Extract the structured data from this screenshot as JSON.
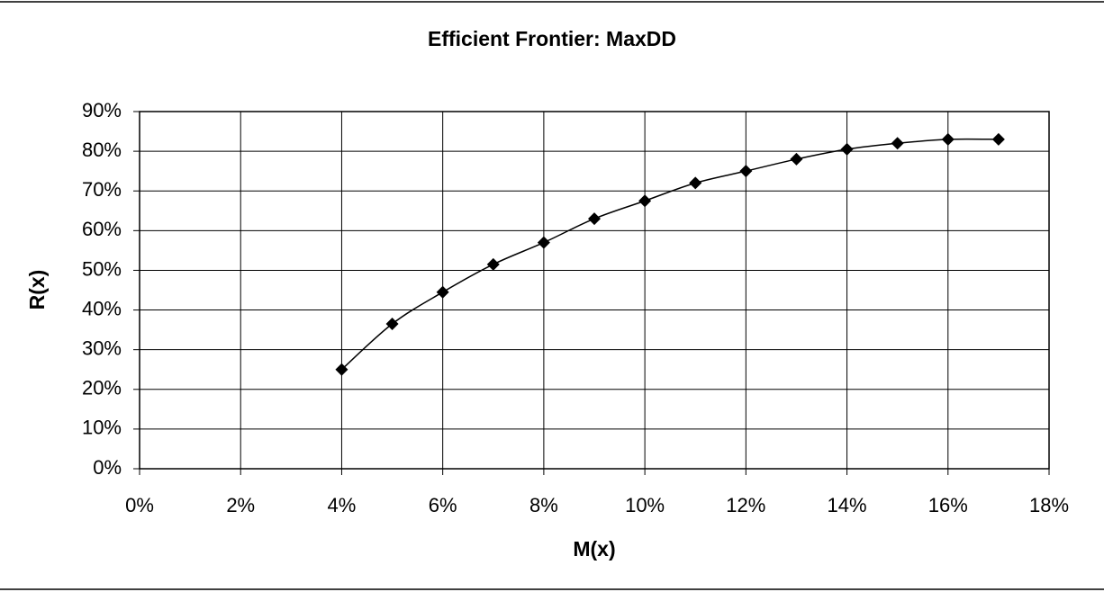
{
  "chart_data": {
    "type": "line",
    "title": "Efficient Frontier: MaxDD",
    "x_label": "M(x)",
    "y_label": "R(x)",
    "x": [
      4,
      5,
      6,
      7,
      8,
      9,
      10,
      11,
      12,
      13,
      14,
      15,
      16,
      17
    ],
    "values": [
      25,
      36.5,
      44.5,
      51.5,
      57,
      63,
      67.5,
      72,
      75,
      78,
      80.5,
      82,
      83,
      83
    ],
    "color": "#000000",
    "marker": "diamond",
    "smooth": true,
    "grid": true,
    "xlim": [
      0,
      18
    ],
    "xticks": [
      {
        "value": 0,
        "label": "0%"
      },
      {
        "value": 2,
        "label": "2%"
      },
      {
        "value": 4,
        "label": "4%"
      },
      {
        "value": 6,
        "label": "6%"
      },
      {
        "value": 8,
        "label": "8%"
      },
      {
        "value": 10,
        "label": "10%"
      },
      {
        "value": 12,
        "label": "12%"
      },
      {
        "value": 14,
        "label": "14%"
      },
      {
        "value": 16,
        "label": "16%"
      },
      {
        "value": 18,
        "label": "18%"
      }
    ],
    "ylim": [
      0,
      90
    ],
    "yticks": [
      {
        "value": 0,
        "label": "0%"
      },
      {
        "value": 10,
        "label": "10%"
      },
      {
        "value": 20,
        "label": "20%"
      },
      {
        "value": 30,
        "label": "30%"
      },
      {
        "value": 40,
        "label": "40%"
      },
      {
        "value": 50,
        "label": "50%"
      },
      {
        "value": 60,
        "label": "60%"
      },
      {
        "value": 70,
        "label": "70%"
      },
      {
        "value": 80,
        "label": "80%"
      },
      {
        "value": 90,
        "label": "90%"
      }
    ]
  }
}
